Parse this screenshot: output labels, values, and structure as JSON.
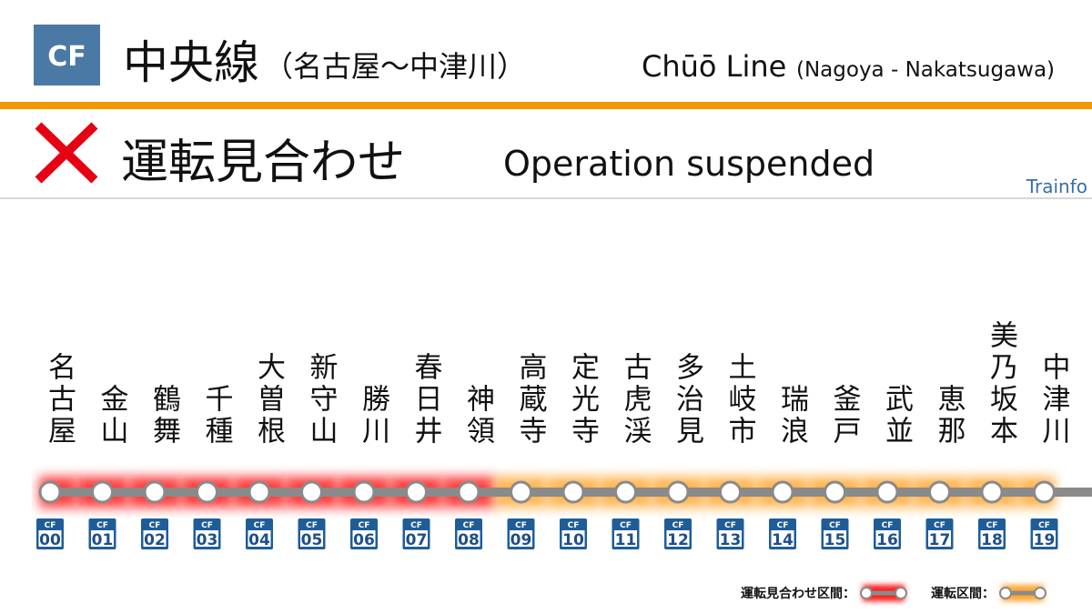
{
  "header": {
    "badge": "CF",
    "title": "中央線",
    "subtitle": "（名古屋〜中津川）",
    "title_en": "Chūō Line",
    "subtitle_en": "(Nagoya - Nakatsugawa)"
  },
  "status": {
    "label": "運転見合わせ",
    "label_en": "Operation suspended"
  },
  "brand": "Trainfo",
  "legend": [
    {
      "label": "運転見合わせ区間：",
      "color": "#ff1a1a"
    },
    {
      "label": "運転区間：",
      "color": "#ffa733"
    }
  ],
  "stations": [
    {
      "name": "名古屋",
      "line": "CF",
      "number": "00",
      "legend": 0
    },
    {
      "name": "金山",
      "line": "CF",
      "number": "01",
      "legend": 0
    },
    {
      "name": "鶴舞",
      "line": "CF",
      "number": "02",
      "legend": 0
    },
    {
      "name": "千種",
      "line": "CF",
      "number": "03",
      "legend": 0
    },
    {
      "name": "大曽根",
      "line": "CF",
      "number": "04",
      "legend": 0
    },
    {
      "name": "新守山",
      "line": "CF",
      "number": "05",
      "legend": 0
    },
    {
      "name": "勝川",
      "line": "CF",
      "number": "06",
      "legend": 0
    },
    {
      "name": "春日井",
      "line": "CF",
      "number": "07",
      "legend": 0
    },
    {
      "name": "神領",
      "line": "CF",
      "number": "08",
      "legend": 0
    },
    {
      "name": "高蔵寺",
      "line": "CF",
      "number": "09",
      "legend": 1
    },
    {
      "name": "定光寺",
      "line": "CF",
      "number": "10",
      "legend": 1
    },
    {
      "name": "古虎渓",
      "line": "CF",
      "number": "11",
      "legend": 1
    },
    {
      "name": "多治見",
      "line": "CF",
      "number": "12",
      "legend": 1
    },
    {
      "name": "土岐市",
      "line": "CF",
      "number": "13",
      "legend": 1
    },
    {
      "name": "瑞浪",
      "line": "CF",
      "number": "14",
      "legend": 1
    },
    {
      "name": "釜戸",
      "line": "CF",
      "number": "15",
      "legend": 1
    },
    {
      "name": "武並",
      "line": "CF",
      "number": "16",
      "legend": 1
    },
    {
      "name": "恵那",
      "line": "CF",
      "number": "17",
      "legend": 1
    },
    {
      "name": "美乃坂本",
      "line": "CF",
      "number": "18",
      "legend": 1
    },
    {
      "name": "中津川",
      "line": "CF",
      "number": "19",
      "legend": 1
    }
  ]
}
